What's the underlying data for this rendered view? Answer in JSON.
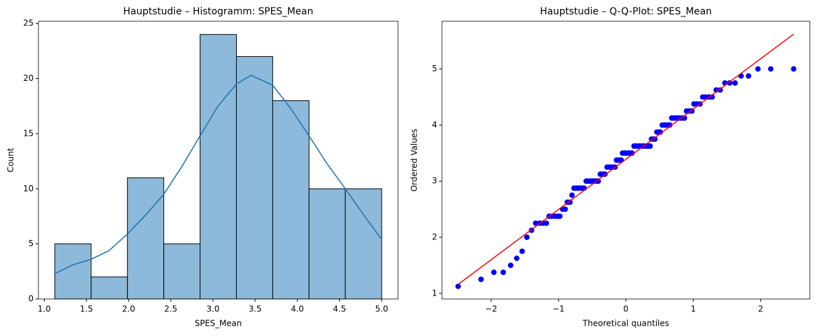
{
  "chart_data": [
    {
      "type": "histogram",
      "title": "Hauptstudie – Histogramm: SPES_Mean",
      "x_label": "SPES_Mean",
      "y_label": "Count",
      "bins": [
        1.125,
        1.556,
        1.986,
        2.417,
        2.847,
        3.278,
        3.708,
        4.139,
        4.569,
        5.0
      ],
      "values": [
        5,
        2,
        11,
        5,
        24,
        22,
        18,
        10,
        10
      ],
      "color": "#8db9da",
      "edge_color": "#000000",
      "kde": {
        "color": "#1f77b4",
        "x": [
          1.125,
          1.34,
          1.556,
          1.77,
          1.986,
          2.2,
          2.417,
          2.63,
          2.847,
          3.06,
          3.278,
          3.45,
          3.708,
          3.92,
          4.139,
          4.35,
          4.569,
          4.78,
          5.0
        ],
        "values": [
          2.3,
          3.1,
          3.6,
          4.4,
          5.9,
          7.6,
          9.5,
          12.0,
          14.8,
          17.5,
          19.5,
          20.3,
          19.4,
          17.3,
          14.8,
          12.3,
          10.0,
          7.7,
          5.4
        ]
      },
      "xlim": [
        0.931,
        5.194
      ],
      "ylim": [
        0,
        25.2
      ],
      "xticks": [
        {
          "value": 1,
          "label": "1.0"
        },
        1.5,
        {
          "value": 2,
          "label": "2.0"
        },
        2.5,
        {
          "value": 3,
          "label": "3.0"
        },
        3.5,
        {
          "value": 4,
          "label": "4.0"
        },
        4.5,
        {
          "value": 5,
          "label": "5.0"
        }
      ],
      "yticks": [
        0,
        5,
        10,
        15,
        20,
        25
      ]
    },
    {
      "type": "scatter",
      "title": "Hauptstudie – Q-Q-Plot: SPES_Mean",
      "x_label": "Theoretical quantiles",
      "y_label": "Ordered Values",
      "color": "#0000ff",
      "x": [
        -2.49,
        -2.15,
        -1.96,
        -1.82,
        -1.71,
        -1.62,
        -1.54,
        -1.47,
        -1.4,
        -1.34,
        -1.28,
        -1.23,
        -1.18,
        -1.14,
        -1.1,
        -1.05,
        -1.01,
        -0.98,
        -0.94,
        -0.9,
        -0.87,
        -0.83,
        -0.8,
        -0.77,
        -0.74,
        -0.71,
        -0.68,
        -0.65,
        -0.62,
        -0.59,
        -0.57,
        -0.54,
        -0.51,
        -0.49,
        -0.46,
        -0.43,
        -0.41,
        -0.38,
        -0.36,
        -0.33,
        -0.31,
        -0.28,
        -0.26,
        -0.24,
        -0.21,
        -0.19,
        -0.16,
        -0.14,
        -0.12,
        -0.09,
        -0.07,
        -0.05,
        -0.02,
        0,
        0.02,
        0.05,
        0.07,
        0.09,
        0.12,
        0.14,
        0.16,
        0.19,
        0.21,
        0.24,
        0.26,
        0.28,
        0.31,
        0.33,
        0.36,
        0.38,
        0.41,
        0.43,
        0.46,
        0.49,
        0.51,
        0.54,
        0.57,
        0.59,
        0.62,
        0.65,
        0.68,
        0.71,
        0.74,
        0.77,
        0.8,
        0.83,
        0.87,
        0.9,
        0.94,
        0.98,
        1.01,
        1.05,
        1.1,
        1.14,
        1.18,
        1.23,
        1.28,
        1.34,
        1.4,
        1.47,
        1.54,
        1.62,
        1.71,
        1.82,
        1.96,
        2.15,
        2.49
      ],
      "values": [
        1.125,
        1.25,
        1.375,
        1.375,
        1.5,
        1.625,
        1.75,
        2.0,
        2.125,
        2.25,
        2.25,
        2.25,
        2.25,
        2.375,
        2.375,
        2.375,
        2.375,
        2.375,
        2.5,
        2.5,
        2.625,
        2.625,
        2.75,
        2.875,
        2.875,
        2.875,
        2.875,
        2.875,
        2.875,
        3.0,
        3.0,
        3.0,
        3.0,
        3.0,
        3.0,
        3.0,
        3.0,
        3.125,
        3.125,
        3.125,
        3.125,
        3.25,
        3.25,
        3.25,
        3.25,
        3.25,
        3.25,
        3.375,
        3.375,
        3.375,
        3.375,
        3.5,
        3.5,
        3.5,
        3.5,
        3.5,
        3.5,
        3.5,
        3.625,
        3.625,
        3.625,
        3.625,
        3.625,
        3.625,
        3.625,
        3.625,
        3.625,
        3.625,
        3.625,
        3.75,
        3.75,
        3.75,
        3.875,
        3.875,
        3.875,
        4.0,
        4.0,
        4.0,
        4.0,
        4.0,
        4.125,
        4.125,
        4.125,
        4.125,
        4.125,
        4.125,
        4.125,
        4.25,
        4.25,
        4.25,
        4.375,
        4.375,
        4.375,
        4.5,
        4.5,
        4.5,
        4.5,
        4.625,
        4.625,
        4.75,
        4.75,
        4.75,
        4.875,
        4.875,
        5.0,
        5.0,
        5.0
      ],
      "fit_line": {
        "color": "#ff0000",
        "x": [
          -2.49,
          2.49
        ],
        "values": [
          1.16,
          5.62
        ]
      },
      "xlim": [
        -2.73,
        2.73
      ],
      "ylim": [
        0.9,
        5.85
      ],
      "xticks": [
        {
          "value": -2,
          "label": "−2"
        },
        {
          "value": -1,
          "label": "−1"
        },
        0,
        1,
        2
      ],
      "yticks": [
        1,
        2,
        3,
        4,
        5
      ]
    }
  ]
}
